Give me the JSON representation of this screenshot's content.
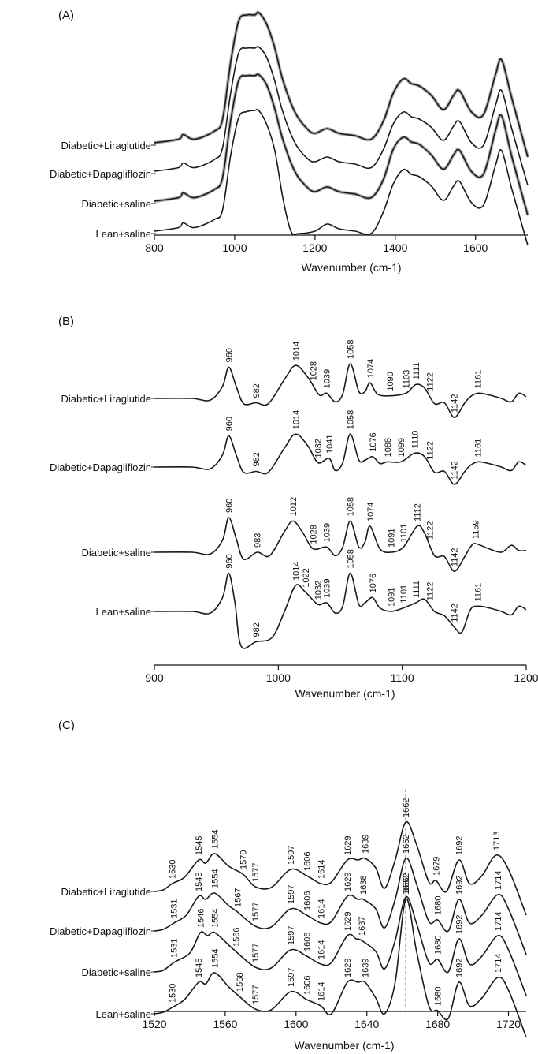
{
  "chart_data": [
    {
      "panel": "(A)",
      "type": "line",
      "xlabel": "Wavenumber (cm-1)",
      "xlim": [
        800,
        1730
      ],
      "xticks": [
        "800",
        "1000",
        "1200",
        "1400",
        "1600"
      ],
      "series": [
        {
          "name": "Diabetic+Liraglutide",
          "shaded": true,
          "x": [
            800,
            860,
            872,
            900,
            950,
            970,
            990,
            1010,
            1030,
            1050,
            1060,
            1080,
            1100,
            1120,
            1150,
            1180,
            1200,
            1230,
            1260,
            1300,
            1340,
            1370,
            1395,
            1420,
            1440,
            1460,
            1490,
            1520,
            1545,
            1560,
            1590,
            1620,
            1650,
            1665,
            1690,
            1730
          ],
          "y": [
            0.02,
            0.05,
            0.09,
            0.05,
            0.12,
            0.22,
            0.7,
            1.05,
            1.1,
            1.1,
            1.12,
            1.02,
            0.82,
            0.55,
            0.28,
            0.14,
            0.1,
            0.14,
            0.1,
            0.08,
            0.05,
            0.2,
            0.44,
            0.56,
            0.52,
            0.5,
            0.42,
            0.3,
            0.42,
            0.46,
            0.28,
            0.26,
            0.6,
            0.72,
            0.4,
            -0.1
          ]
        },
        {
          "name": "Diabetic+Dapagliflozin",
          "shaded": false,
          "x": [
            800,
            860,
            872,
            900,
            950,
            970,
            990,
            1010,
            1030,
            1050,
            1060,
            1080,
            1100,
            1120,
            1150,
            1180,
            1200,
            1230,
            1260,
            1300,
            1340,
            1370,
            1395,
            1420,
            1440,
            1460,
            1490,
            1520,
            1545,
            1560,
            1590,
            1620,
            1650,
            1665,
            1690,
            1730
          ],
          "y": [
            0.02,
            0.05,
            0.09,
            0.05,
            0.12,
            0.22,
            0.68,
            1.02,
            1.06,
            1.06,
            1.07,
            0.98,
            0.78,
            0.52,
            0.26,
            0.13,
            0.1,
            0.14,
            0.1,
            0.08,
            0.05,
            0.2,
            0.42,
            0.52,
            0.48,
            0.46,
            0.39,
            0.28,
            0.4,
            0.44,
            0.26,
            0.24,
            0.58,
            0.7,
            0.38,
            -0.1
          ]
        },
        {
          "name": "Diabetic+saline",
          "shaded": true,
          "x": [
            800,
            860,
            872,
            900,
            950,
            970,
            990,
            1010,
            1030,
            1050,
            1060,
            1080,
            1100,
            1120,
            1150,
            1180,
            1200,
            1230,
            1260,
            1300,
            1340,
            1370,
            1395,
            1420,
            1440,
            1460,
            1490,
            1520,
            1545,
            1560,
            1590,
            1620,
            1650,
            1665,
            1690,
            1730
          ],
          "y": [
            0.02,
            0.05,
            0.09,
            0.05,
            0.12,
            0.22,
            0.7,
            1.04,
            1.08,
            1.08,
            1.09,
            1.0,
            0.8,
            0.54,
            0.27,
            0.14,
            0.1,
            0.14,
            0.1,
            0.08,
            0.05,
            0.2,
            0.46,
            0.56,
            0.52,
            0.5,
            0.41,
            0.29,
            0.41,
            0.45,
            0.27,
            0.25,
            0.62,
            0.74,
            0.4,
            -0.1
          ]
        },
        {
          "name": "Lean+saline",
          "shaded": false,
          "x": [
            800,
            860,
            872,
            900,
            950,
            970,
            990,
            1010,
            1030,
            1050,
            1060,
            1080,
            1100,
            1120,
            1140,
            1160,
            1200,
            1230,
            1260,
            1300,
            1340,
            1370,
            1395,
            1420,
            1440,
            1460,
            1490,
            1520,
            1545,
            1560,
            1590,
            1620,
            1650,
            1665,
            1690,
            1730
          ],
          "y": [
            0.02,
            0.05,
            0.09,
            0.05,
            0.12,
            0.2,
            0.66,
            0.98,
            1.03,
            1.04,
            1.04,
            0.92,
            0.7,
            0.3,
            0.02,
            0.0,
            0.02,
            0.08,
            0.04,
            0.02,
            0.0,
            0.18,
            0.42,
            0.54,
            0.5,
            0.48,
            0.4,
            0.28,
            0.4,
            0.44,
            0.26,
            0.24,
            0.58,
            0.7,
            0.38,
            -0.1
          ]
        }
      ]
    },
    {
      "panel": "(B)",
      "type": "line",
      "xlabel": "Wavenumber (cm-1)",
      "xlim": [
        900,
        1200
      ],
      "xticks": [
        "900",
        "1000",
        "1100",
        "1200"
      ],
      "series": [
        {
          "name": "Diabetic+Liraglutide",
          "x": [
            900,
            930,
            945,
            955,
            960,
            966,
            972,
            982,
            992,
            1005,
            1014,
            1024,
            1033,
            1039,
            1046,
            1052,
            1058,
            1065,
            1070,
            1074,
            1080,
            1090,
            1103,
            1111,
            1118,
            1126,
            1134,
            1142,
            1150,
            1155,
            1161,
            1170,
            1180,
            1188,
            1194,
            1200
          ],
          "y": [
            0.0,
            0.0,
            -0.02,
            0.14,
            0.36,
            0.14,
            -0.06,
            -0.05,
            -0.06,
            0.22,
            0.38,
            0.24,
            0.04,
            0.06,
            -0.04,
            0.05,
            0.4,
            0.08,
            0.08,
            0.18,
            0.05,
            0.03,
            0.06,
            0.16,
            0.12,
            -0.06,
            -0.05,
            -0.22,
            -0.06,
            0.02,
            0.06,
            0.04,
            0.0,
            -0.04,
            0.06,
            0.02
          ]
        },
        {
          "name": "Diabetic+Dapagliflozin",
          "x": [
            900,
            930,
            945,
            955,
            960,
            966,
            972,
            982,
            992,
            1005,
            1014,
            1024,
            1032,
            1041,
            1046,
            1052,
            1058,
            1065,
            1070,
            1076,
            1082,
            1088,
            1099,
            1110,
            1118,
            1126,
            1134,
            1142,
            1150,
            1155,
            1161,
            1170,
            1180,
            1188,
            1194,
            1200
          ],
          "y": [
            0.0,
            0.0,
            -0.02,
            0.14,
            0.36,
            0.14,
            -0.06,
            -0.05,
            -0.06,
            0.22,
            0.38,
            0.24,
            0.05,
            0.1,
            -0.04,
            0.05,
            0.38,
            0.08,
            0.08,
            0.12,
            0.04,
            0.06,
            0.06,
            0.16,
            0.12,
            -0.06,
            -0.05,
            -0.2,
            -0.06,
            0.02,
            0.06,
            0.04,
            0.0,
            -0.04,
            0.06,
            0.02
          ]
        },
        {
          "name": "Diabetic+saline",
          "x": [
            900,
            930,
            945,
            955,
            960,
            966,
            972,
            983,
            993,
            1005,
            1012,
            1020,
            1028,
            1039,
            1046,
            1052,
            1058,
            1065,
            1070,
            1074,
            1082,
            1091,
            1101,
            1112,
            1118,
            1126,
            1134,
            1142,
            1150,
            1155,
            1159,
            1170,
            1180,
            1188,
            1194,
            1200
          ],
          "y": [
            0.0,
            0.0,
            -0.02,
            0.14,
            0.4,
            0.16,
            -0.08,
            0.0,
            -0.04,
            0.24,
            0.36,
            0.22,
            0.04,
            0.06,
            -0.04,
            0.06,
            0.36,
            0.06,
            0.12,
            0.3,
            0.04,
            0.0,
            0.06,
            0.3,
            0.22,
            -0.04,
            -0.05,
            -0.22,
            -0.06,
            0.06,
            0.1,
            0.04,
            0.0,
            0.08,
            0.02,
            0.02
          ]
        },
        {
          "name": "Lean+saline",
          "x": [
            900,
            930,
            945,
            955,
            960,
            965,
            970,
            982,
            995,
            1005,
            1014,
            1022,
            1032,
            1039,
            1046,
            1052,
            1058,
            1065,
            1070,
            1076,
            1082,
            1091,
            1101,
            1111,
            1118,
            1126,
            1134,
            1142,
            1148,
            1155,
            1161,
            1170,
            1180,
            1188,
            1194,
            1200
          ],
          "y": [
            0.0,
            0.0,
            -0.02,
            0.16,
            0.44,
            0.1,
            -0.4,
            -0.35,
            -0.3,
            0.0,
            0.3,
            0.22,
            0.08,
            0.1,
            -0.02,
            0.06,
            0.44,
            0.08,
            0.1,
            0.16,
            0.04,
            0.0,
            0.04,
            0.1,
            0.14,
            0.0,
            -0.05,
            -0.18,
            -0.24,
            0.02,
            0.06,
            0.04,
            0.0,
            -0.04,
            0.06,
            0.02
          ]
        }
      ]
    },
    {
      "panel": "(C)",
      "type": "line",
      "xlabel": "Wavenumber (cm-1)",
      "xlim": [
        1520,
        1730
      ],
      "xticks": [
        "1520",
        "1560",
        "1600",
        "1640",
        "1680",
        "1720"
      ],
      "series": [
        {
          "name": "Diabetic+Liraglutide",
          "x": [
            1520,
            1525,
            1530,
            1537,
            1545,
            1549,
            1554,
            1562,
            1570,
            1577,
            1586,
            1597,
            1606,
            1614,
            1620,
            1629,
            1635,
            1639,
            1645,
            1650,
            1656,
            1662,
            1668,
            1675,
            1679,
            1685,
            1692,
            1698,
            1705,
            1713,
            1720,
            1730
          ],
          "y": [
            0.0,
            0.02,
            0.1,
            0.18,
            0.4,
            0.36,
            0.48,
            0.32,
            0.22,
            0.06,
            0.05,
            0.28,
            0.2,
            0.1,
            0.12,
            0.4,
            0.4,
            0.42,
            0.3,
            0.04,
            0.4,
            0.88,
            0.6,
            0.12,
            0.14,
            0.0,
            0.4,
            0.1,
            0.2,
            0.46,
            0.28,
            -0.3
          ]
        },
        {
          "name": "Diabetic+Dapagliflozin",
          "x": [
            1520,
            1525,
            1531,
            1538,
            1545,
            1549,
            1554,
            1562,
            1567,
            1577,
            1586,
            1597,
            1606,
            1614,
            1620,
            1629,
            1635,
            1638,
            1645,
            1650,
            1656,
            1662,
            1668,
            1675,
            1680,
            1686,
            1692,
            1698,
            1705,
            1714,
            1720,
            1730
          ],
          "y": [
            0.0,
            0.02,
            0.1,
            0.2,
            0.44,
            0.4,
            0.48,
            0.32,
            0.24,
            0.06,
            0.05,
            0.28,
            0.2,
            0.1,
            0.12,
            0.44,
            0.4,
            0.4,
            0.28,
            0.04,
            0.4,
            0.92,
            0.6,
            0.12,
            0.14,
            0.0,
            0.4,
            0.1,
            0.2,
            0.46,
            0.28,
            -0.3
          ]
        },
        {
          "name": "Diabetic+saline",
          "x": [
            1520,
            1525,
            1531,
            1540,
            1546,
            1550,
            1554,
            1562,
            1566,
            1577,
            1586,
            1597,
            1606,
            1614,
            1620,
            1629,
            1634,
            1637,
            1645,
            1650,
            1656,
            1662,
            1668,
            1675,
            1680,
            1686,
            1692,
            1698,
            1705,
            1714,
            1720,
            1730
          ],
          "y": [
            0.0,
            0.02,
            0.12,
            0.24,
            0.5,
            0.46,
            0.5,
            0.34,
            0.26,
            0.06,
            0.05,
            0.28,
            0.2,
            0.1,
            0.12,
            0.46,
            0.42,
            0.4,
            0.26,
            0.04,
            0.4,
            0.95,
            0.62,
            0.12,
            0.16,
            0.0,
            0.42,
            0.1,
            0.2,
            0.46,
            0.28,
            -0.3
          ]
        },
        {
          "name": "Lean+saline",
          "x": [
            1520,
            1525,
            1530,
            1537,
            1545,
            1549,
            1554,
            1562,
            1568,
            1577,
            1586,
            1597,
            1606,
            1614,
            1620,
            1629,
            1635,
            1639,
            1645,
            1650,
            1656,
            1662,
            1668,
            1675,
            1680,
            1686,
            1692,
            1698,
            1705,
            1714,
            1720,
            1730
          ],
          "y": [
            0.0,
            0.02,
            0.08,
            0.18,
            0.4,
            0.38,
            0.52,
            0.34,
            0.22,
            0.06,
            0.05,
            0.28,
            0.18,
            0.1,
            0.0,
            0.4,
            0.4,
            0.4,
            0.2,
            0.0,
            0.4,
            1.45,
            0.8,
            0.1,
            0.04,
            -0.06,
            0.4,
            0.1,
            0.2,
            0.46,
            0.3,
            -0.3
          ]
        }
      ]
    }
  ],
  "panel_b_peaks": [
    [
      "960",
      "982",
      "1014",
      "1028",
      "1039",
      "1058",
      "1074",
      "1090",
      "1103",
      "1111",
      "1122",
      "1142",
      "1161"
    ],
    [
      "960",
      "982",
      "1014",
      "1032",
      "1041",
      "1058",
      "1076",
      "1088",
      "1099",
      "1110",
      "1122",
      "1142",
      "1161"
    ],
    [
      "960",
      "983",
      "1012",
      "1028",
      "1039",
      "1058",
      "1074",
      "1091",
      "1101",
      "1112",
      "1122",
      "1142",
      "1159"
    ],
    [
      "960",
      "982",
      "1014",
      "1022",
      "1032",
      "1039",
      "1058",
      "1076",
      "1091",
      "1101",
      "1111",
      "1122",
      "1142",
      "1161"
    ]
  ],
  "panel_c_peaks": [
    [
      "1530",
      "1545",
      "1554",
      "1570",
      "1577",
      "1597",
      "1606",
      "1614",
      "1629",
      "1639",
      "1662",
      "1679",
      "1692",
      "1713"
    ],
    [
      "1531",
      "1545",
      "1554",
      "1567",
      "1577",
      "1597",
      "1606",
      "1614",
      "1629",
      "1638",
      "1662",
      "1680",
      "1692",
      "1714"
    ],
    [
      "1531",
      "1546",
      "1554",
      "1566",
      "1577",
      "1597",
      "1606",
      "1614",
      "1629",
      "1637",
      "1662",
      "1680",
      "1692",
      "1714"
    ],
    [
      "1530",
      "1545",
      "1554",
      "1568",
      "1577",
      "1597",
      "1606",
      "1614",
      "1629",
      "1639",
      "1662",
      "1680",
      "1692",
      "1714"
    ]
  ]
}
